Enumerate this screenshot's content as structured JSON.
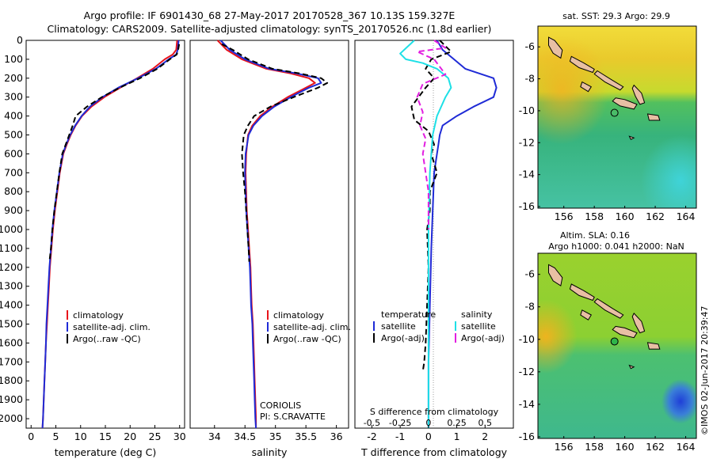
{
  "header": {
    "line1": "Argo profile: IF 6901430_68 27-May-2017 20170528_367 10.13S 159.327E",
    "line2": "Climatology: CARS2009. Satellite-adjusted climatology: synTS_20170526.nc (1.8d earlier)"
  },
  "colors": {
    "climatology": "#e8141b",
    "satellite": "#1f2bd6",
    "argo": "#000000",
    "salinity_satellite": "#1ee0e6",
    "salinity_argo": "#e21ee0"
  },
  "chart_data": [
    {
      "id": "temperature",
      "type": "line",
      "xlabel": "temperature (deg C)",
      "ylabel": "",
      "xlim": [
        -1,
        31
      ],
      "ylim": [
        2050,
        0
      ],
      "y_reversed": true,
      "xticks": [
        0,
        5,
        10,
        15,
        20,
        25,
        30
      ],
      "yticks": [
        0,
        100,
        200,
        300,
        400,
        500,
        600,
        700,
        800,
        900,
        1000,
        1100,
        1200,
        1300,
        1400,
        1500,
        1600,
        1700,
        1800,
        1900,
        2000
      ],
      "legend": {
        "placement": "lower-center",
        "items": [
          "climatology",
          "satellite-adj. clim.",
          "Argo(..raw -QC)"
        ]
      },
      "series": [
        {
          "name": "climatology",
          "color": "#e8141b",
          "dash": "solid",
          "x": [
            29.5,
            29.3,
            28.6,
            27.0,
            24.6,
            21.4,
            18.0,
            14.8,
            12.2,
            10.3,
            9.0,
            8.0,
            7.2,
            6.5,
            5.8,
            5.3,
            4.8,
            4.4,
            4.1,
            3.8,
            3.6,
            3.4,
            3.2,
            3.0,
            2.85,
            2.7,
            2.55,
            2.4,
            2.3
          ],
          "y": [
            0,
            50,
            75,
            100,
            150,
            200,
            250,
            300,
            350,
            400,
            450,
            500,
            550,
            600,
            700,
            800,
            900,
            1000,
            1100,
            1200,
            1300,
            1400,
            1500,
            1600,
            1700,
            1800,
            1900,
            2000,
            2050
          ]
        },
        {
          "name": "satellite-adj. clim.",
          "color": "#1f2bd6",
          "dash": "solid",
          "x": [
            29.8,
            29.6,
            29.3,
            27.8,
            25.2,
            21.6,
            17.6,
            14.4,
            11.9,
            10.2,
            8.9,
            7.9,
            7.1,
            6.4,
            5.7,
            5.2,
            4.7,
            4.3,
            4.0,
            3.7,
            3.5,
            3.3,
            3.1,
            3.0,
            2.85,
            2.7,
            2.55,
            2.4,
            2.3
          ],
          "y": [
            0,
            50,
            75,
            100,
            150,
            200,
            250,
            300,
            350,
            400,
            450,
            500,
            550,
            600,
            700,
            800,
            900,
            1000,
            1100,
            1200,
            1300,
            1400,
            1500,
            1600,
            1700,
            1800,
            1900,
            2000,
            2050
          ]
        },
        {
          "name": "Argo(..raw -QC)",
          "color": "#000000",
          "dash": "dash",
          "x": [
            29.9,
            29.7,
            29.4,
            28.0,
            25.5,
            22.0,
            17.9,
            14.3,
            11.3,
            9.0,
            8.4,
            7.7,
            7.0,
            6.3,
            5.7,
            5.2,
            4.7,
            4.3,
            4.0,
            3.7
          ],
          "y": [
            20,
            50,
            75,
            100,
            150,
            200,
            250,
            300,
            350,
            400,
            450,
            500,
            550,
            600,
            700,
            800,
            900,
            1000,
            1100,
            1170
          ]
        }
      ]
    },
    {
      "id": "salinity",
      "type": "line",
      "xlabel": "salinity",
      "xlim": [
        33.6,
        36.2
      ],
      "ylim": [
        2050,
        0
      ],
      "y_reversed": true,
      "xticks": [
        34,
        34.5,
        35,
        35.5,
        36
      ],
      "annotations": [
        "CORIOLIS",
        "PI: S.CRAVATTE"
      ],
      "legend": {
        "placement": "lower-center",
        "items": [
          "climatology",
          "satellite-adj. clim.",
          "Argo(..raw -QC)"
        ]
      },
      "series": [
        {
          "name": "climatology",
          "color": "#e8141b",
          "dash": "solid",
          "x": [
            34.05,
            34.2,
            34.45,
            34.85,
            35.25,
            35.55,
            35.65,
            35.5,
            35.2,
            34.95,
            34.75,
            34.62,
            34.55,
            34.52,
            34.51,
            34.52,
            34.53,
            34.55,
            34.57,
            34.59,
            34.6,
            34.61,
            34.63,
            34.64,
            34.65,
            34.66,
            34.67,
            34.68,
            34.68
          ],
          "y": [
            0,
            50,
            100,
            150,
            175,
            200,
            225,
            250,
            300,
            350,
            400,
            450,
            500,
            600,
            700,
            800,
            900,
            1000,
            1100,
            1200,
            1300,
            1400,
            1500,
            1600,
            1700,
            1800,
            1900,
            2000,
            2050
          ]
        },
        {
          "name": "satellite-adj. clim.",
          "color": "#1f2bd6",
          "dash": "solid",
          "x": [
            34.1,
            34.25,
            34.5,
            34.9,
            35.35,
            35.7,
            35.75,
            35.55,
            35.25,
            34.98,
            34.78,
            34.64,
            34.56,
            34.51,
            34.5,
            34.51,
            34.52,
            34.54,
            34.56,
            34.58,
            34.59,
            34.6,
            34.62,
            34.63,
            34.64,
            34.65,
            34.66,
            34.67,
            34.68
          ],
          "y": [
            0,
            50,
            100,
            150,
            175,
            200,
            225,
            250,
            300,
            350,
            400,
            450,
            500,
            600,
            700,
            800,
            900,
            1000,
            1100,
            1200,
            1300,
            1400,
            1500,
            1600,
            1700,
            1800,
            1900,
            2000,
            2050
          ]
        },
        {
          "name": "Argo(..raw -QC)",
          "color": "#000000",
          "dash": "dash",
          "x": [
            34.12,
            34.3,
            34.55,
            34.95,
            35.4,
            35.75,
            35.85,
            35.7,
            35.3,
            34.92,
            34.65,
            34.55,
            34.48,
            34.45,
            34.47,
            34.5,
            34.52,
            34.54,
            34.56,
            34.57
          ],
          "y": [
            20,
            50,
            100,
            150,
            175,
            200,
            225,
            250,
            300,
            350,
            400,
            450,
            500,
            600,
            700,
            800,
            900,
            1000,
            1100,
            1170
          ]
        }
      ]
    },
    {
      "id": "difference",
      "type": "line",
      "xlabel": "T difference from climatology",
      "x2label": "S difference from climatology",
      "xlim": [
        -2.6,
        3.0
      ],
      "ylim": [
        2050,
        0
      ],
      "y_reversed": true,
      "xticks": [
        -2,
        -1,
        0,
        1,
        2
      ],
      "x2ticks": [
        "-0.5",
        "-0.25",
        "0",
        "0.25",
        "0.5"
      ],
      "legend": {
        "placement": "lower-center",
        "temperature_header": "temperature",
        "salinity_header": "salinity",
        "items": [
          "satellite",
          "Argo(-adj)",
          "satellite",
          "Argo(-adj)"
        ]
      },
      "series": [
        {
          "name": "temperature satellite",
          "color": "#1f2bd6",
          "dash": "solid",
          "x": [
            0.3,
            0.5,
            0.9,
            1.3,
            2.3,
            2.4,
            2.3,
            1.6,
            1.0,
            0.5,
            0.4,
            0.35,
            0.3,
            0.2,
            0.15,
            0.1,
            0.05,
            0.0,
            0.0
          ],
          "y": [
            0,
            50,
            100,
            150,
            200,
            250,
            300,
            350,
            400,
            450,
            500,
            550,
            600,
            700,
            900,
            1100,
            1400,
            1700,
            2050
          ]
        },
        {
          "name": "temperature Argo(-adj)",
          "color": "#000000",
          "dash": "dash",
          "x": [
            0.4,
            0.6,
            0.8,
            0.1,
            -0.1,
            0.2,
            -0.1,
            -0.6,
            -0.5,
            0.0,
            0.2,
            0.1,
            0.3,
            0.05,
            0.05,
            -0.05,
            0.0,
            -0.05,
            -0.1,
            -0.15,
            -0.2
          ],
          "y": [
            0,
            30,
            60,
            100,
            150,
            200,
            250,
            350,
            420,
            480,
            550,
            600,
            700,
            800,
            900,
            1000,
            1200,
            1400,
            1600,
            1700,
            1750
          ]
        },
        {
          "name": "salinity satellite",
          "color": "#1ee0e6",
          "dash": "solid",
          "x": [
            -0.5,
            -1.0,
            -0.8,
            -0.2,
            0.3,
            0.7,
            0.8,
            0.6,
            0.3,
            0.15,
            0.05,
            0.0,
            0.0,
            0.0
          ],
          "y": [
            0,
            70,
            100,
            120,
            150,
            200,
            250,
            300,
            400,
            500,
            700,
            1000,
            1500,
            2050
          ]
        },
        {
          "name": "salinity Argo(-adj)",
          "color": "#e21ee0",
          "dash": "dash",
          "x": [
            0.2,
            0.6,
            -0.4,
            0.2,
            0.6,
            -0.2,
            -0.4,
            -0.2,
            -0.3,
            -0.1,
            -0.2,
            -0.1,
            0.0,
            0.0
          ],
          "y": [
            0,
            40,
            60,
            100,
            180,
            230,
            300,
            380,
            450,
            520,
            600,
            700,
            800,
            1000
          ]
        }
      ]
    },
    {
      "id": "sst-map",
      "type": "heatmap",
      "title": "sat. SST: 29.3  Argo: 29.9",
      "xticks": [
        156,
        158,
        160,
        162,
        164
      ],
      "yticks": [
        -6,
        -8,
        -10,
        -12,
        -14,
        -16
      ],
      "xlim": [
        154.3,
        164.7
      ],
      "ylim": [
        -16.1,
        -4.7
      ],
      "argo_position": {
        "lon": 159.327,
        "lat": -10.13
      }
    },
    {
      "id": "sla-map",
      "type": "heatmap",
      "title": "Altim. SLA: 0.16",
      "subtitle": "Argo h1000: 0.041  h2000: NaN",
      "xticks": [
        156,
        158,
        160,
        162,
        164
      ],
      "yticks": [
        -6,
        -8,
        -10,
        -12,
        -14,
        -16
      ],
      "xlim": [
        154.3,
        164.7
      ],
      "ylim": [
        -16.1,
        -4.7
      ],
      "argo_position": {
        "lon": 159.327,
        "lat": -10.13
      }
    }
  ],
  "footer": {
    "credit": "©IMOS 02-Jun-2017 20:39:47"
  }
}
